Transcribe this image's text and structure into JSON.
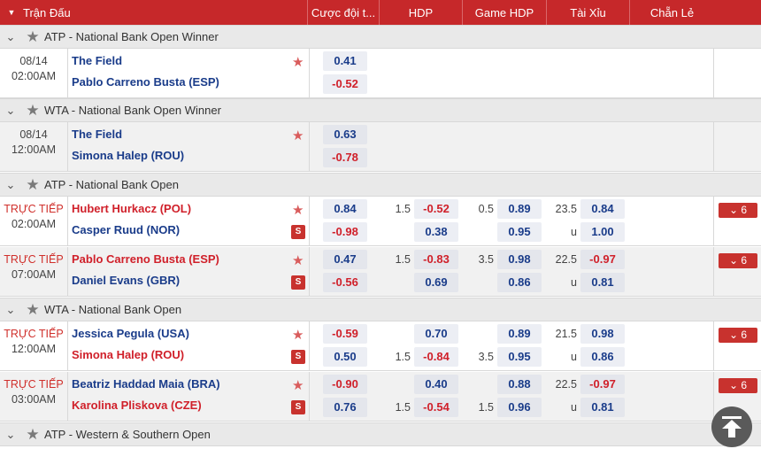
{
  "header": {
    "match": "Trận Đấu",
    "cols": [
      "Cược đội t...",
      "HDP",
      "Game HDP",
      "Tài Xỉu",
      "Chẵn Lẻ"
    ]
  },
  "leagues": [
    {
      "name": "ATP - National Bank Open Winner"
    },
    {
      "name": "WTA - National Bank Open Winner"
    },
    {
      "name": "ATP - National Bank Open"
    },
    {
      "name": "WTA - National Bank Open"
    },
    {
      "name": "ATP - Western & Southern Open"
    }
  ],
  "matches": [
    {
      "date": "08/14",
      "time": "02:00AM",
      "team1": "The Field",
      "team2": "Pablo Carreno Busta (ESP)",
      "o1a": "0.41",
      "o1b": "-0.52"
    },
    {
      "date": "08/14",
      "time": "12:00AM",
      "team1": "The Field",
      "team2": "Simona Halep (ROU)",
      "o1a": "0.63",
      "o1b": "-0.78"
    },
    {
      "date": "TRỰC TIẾP",
      "time": "02:00AM",
      "team1": "Hubert Hurkacz (POL)",
      "team2": "Casper Ruud (NOR)",
      "o1a": "0.84",
      "o1b": "-0.98",
      "l2a": "1.5",
      "o2a": "-0.52",
      "l2b": "",
      "o2b": "0.38",
      "l3a": "0.5",
      "o3a": "0.89",
      "l3b": "",
      "o3b": "0.95",
      "l4a": "23.5",
      "o4a": "0.84",
      "l4b": "u",
      "o4b": "1.00",
      "more": "6"
    },
    {
      "date": "TRỰC TIẾP",
      "time": "07:00AM",
      "team1": "Pablo Carreno Busta (ESP)",
      "team2": "Daniel Evans (GBR)",
      "o1a": "0.47",
      "o1b": "-0.56",
      "l2a": "1.5",
      "o2a": "-0.83",
      "l2b": "",
      "o2b": "0.69",
      "l3a": "3.5",
      "o3a": "0.98",
      "l3b": "",
      "o3b": "0.86",
      "l4a": "22.5",
      "o4a": "-0.97",
      "l4b": "u",
      "o4b": "0.81",
      "more": "6"
    },
    {
      "date": "TRỰC TIẾP",
      "time": "12:00AM",
      "team1": "Jessica Pegula (USA)",
      "team2": "Simona Halep (ROU)",
      "o1a": "-0.59",
      "o1b": "0.50",
      "l2a": "",
      "o2a": "0.70",
      "l2b": "1.5",
      "o2b": "-0.84",
      "l3a": "",
      "o3a": "0.89",
      "l3b": "3.5",
      "o3b": "0.95",
      "l4a": "21.5",
      "o4a": "0.98",
      "l4b": "u",
      "o4b": "0.86",
      "more": "6"
    },
    {
      "date": "TRỰC TIẾP",
      "time": "03:00AM",
      "team1": "Beatriz Haddad Maia (BRA)",
      "team2": "Karolina Pliskova (CZE)",
      "o1a": "-0.90",
      "o1b": "0.76",
      "l2a": "",
      "o2a": "0.40",
      "l2b": "1.5",
      "o2b": "-0.54",
      "l3a": "",
      "o3a": "0.88",
      "l3b": "1.5",
      "o3b": "0.96",
      "l4a": "22.5",
      "o4a": "-0.97",
      "l4b": "u",
      "o4b": "0.81",
      "more": "6"
    }
  ],
  "icons": {
    "favorite": "star-icon",
    "stream": "stream-icon",
    "expand": "chevron-down-icon",
    "scroll_top": "arrow-up-icon"
  },
  "colors": {
    "header_bg": "#c6282a",
    "team_blue": "#1a3c8a",
    "negative_red": "#d0202a",
    "live_red": "#d0302c"
  }
}
